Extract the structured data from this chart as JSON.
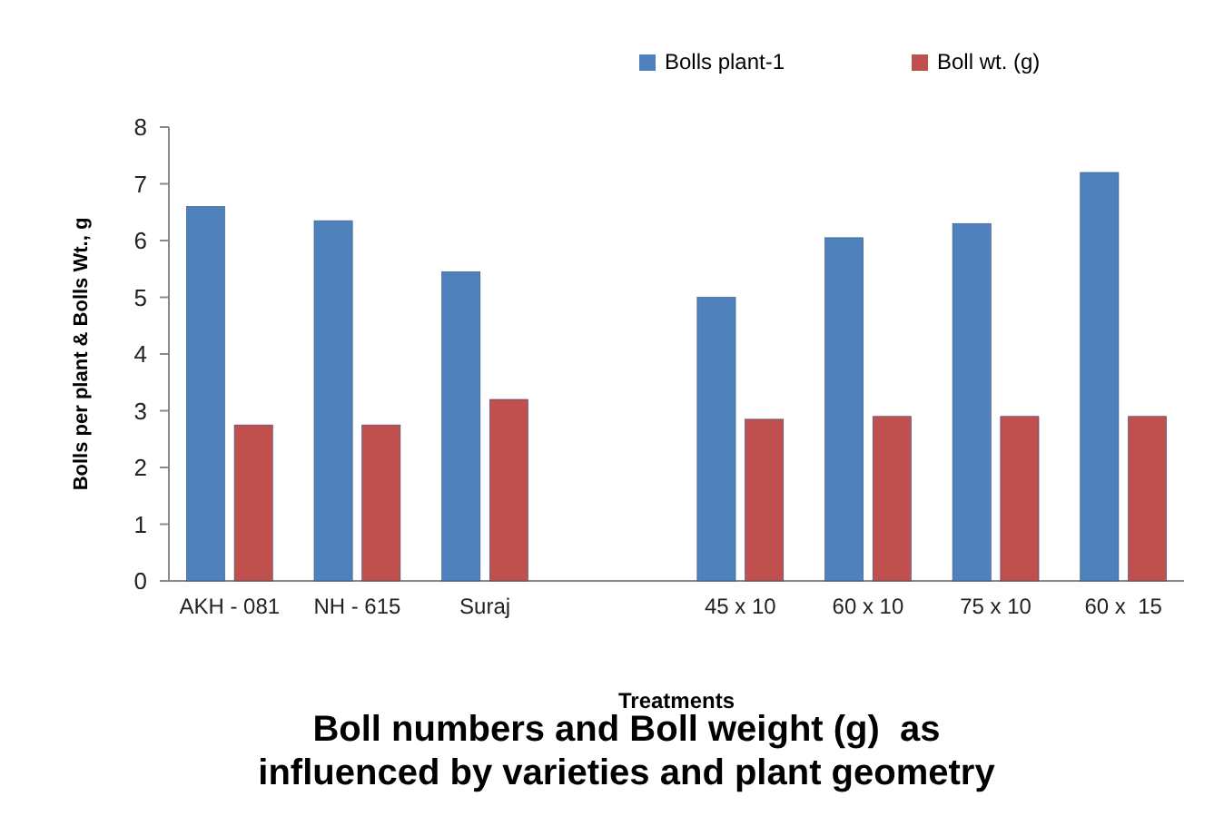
{
  "chart_data": {
    "type": "bar",
    "title": "Boll numbers and Boll weight (g)  as influenced by varieties and plant geometry",
    "xlabel": "Treatments",
    "ylabel": "Bolls per plant & Bolls Wt., g",
    "categories": [
      "AKH - 081",
      "NH - 615",
      "Suraj",
      null,
      "45 x 10",
      "60 x 10",
      "75 x 10",
      "60 x  15"
    ],
    "series": [
      {
        "name": "Bolls plant-1",
        "color": "#4f81bd",
        "values": [
          6.6,
          6.35,
          5.45,
          null,
          5.0,
          6.05,
          6.3,
          7.2
        ]
      },
      {
        "name": "Boll wt. (g)",
        "color": "#c0504d",
        "values": [
          2.75,
          2.75,
          3.2,
          null,
          2.85,
          2.9,
          2.9,
          2.9
        ]
      }
    ],
    "ylim": [
      0,
      8
    ],
    "yticks": [
      0,
      1,
      2,
      3,
      4,
      5,
      6,
      7,
      8
    ],
    "grid": false,
    "legend": "top right"
  }
}
